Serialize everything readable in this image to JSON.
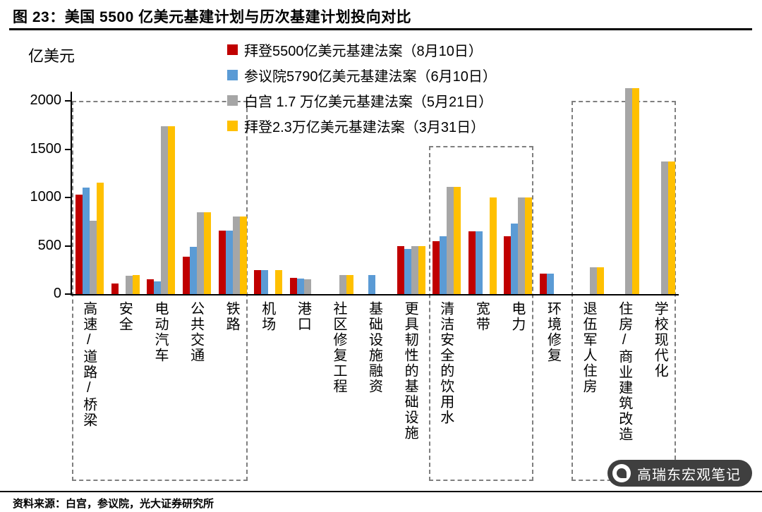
{
  "header": {
    "title": "图 23：美国 5500 亿美元基建计划与历次基建计划投向对比"
  },
  "chart_data": {
    "type": "bar",
    "title": "美国 5500 亿美元基建计划与历次基建计划投向对比",
    "unit_label": "亿美元",
    "ylim": [
      0,
      2000
    ],
    "yticks": [
      0,
      500,
      1000,
      1500,
      2000
    ],
    "grid": false,
    "legend_position": "top",
    "categories": [
      "高速/道路/桥梁",
      "安全",
      "电动汽车",
      "公共交通",
      "铁路",
      "机场",
      "港口",
      "社区修复工程",
      "基础设施融资",
      "更具韧性的基础设施",
      "清洁安全的饮用水",
      "宽带",
      "电力",
      "环境修复",
      "退伍军人住房",
      "住房/商业建筑改造",
      "学校现代化"
    ],
    "series": [
      {
        "name": "拜登5500亿美元基建法案（8月10日）",
        "color": "#C00000",
        "values": [
          1030,
          110,
          150,
          390,
          660,
          250,
          170,
          0,
          0,
          500,
          550,
          650,
          600,
          210,
          0,
          0,
          0
        ]
      },
      {
        "name": "参议院5790亿美元基建法案（6月10日）",
        "color": "#5B9BD5",
        "values": [
          1100,
          0,
          130,
          490,
          660,
          250,
          160,
          0,
          200,
          470,
          600,
          650,
          730,
          210,
          0,
          0,
          0
        ]
      },
      {
        "name": "白宫 1.7 万亿美元基建法案（5月21日）",
        "color": "#A6A6A6",
        "values": [
          760,
          190,
          1740,
          850,
          800,
          0,
          150,
          200,
          0,
          500,
          1110,
          0,
          1000,
          0,
          280,
          2130,
          1370
        ]
      },
      {
        "name": "拜登2.3万亿美元基建法案（3月31日）",
        "color": "#FFC000",
        "values": [
          1150,
          200,
          1740,
          850,
          800,
          250,
          0,
          200,
          0,
          500,
          1110,
          1000,
          1000,
          0,
          280,
          2130,
          1370
        ]
      }
    ],
    "highlight_boxes": [
      {
        "from": 0,
        "to": 4,
        "top": 2000
      },
      {
        "from": 10,
        "to": 12,
        "top": 1530
      },
      {
        "from": 14,
        "to": 16,
        "top": 2000
      }
    ]
  },
  "footer": {
    "source": "资料来源：白宫，参议院，光大证券研究所",
    "watermark": "高瑞东宏观笔记"
  }
}
